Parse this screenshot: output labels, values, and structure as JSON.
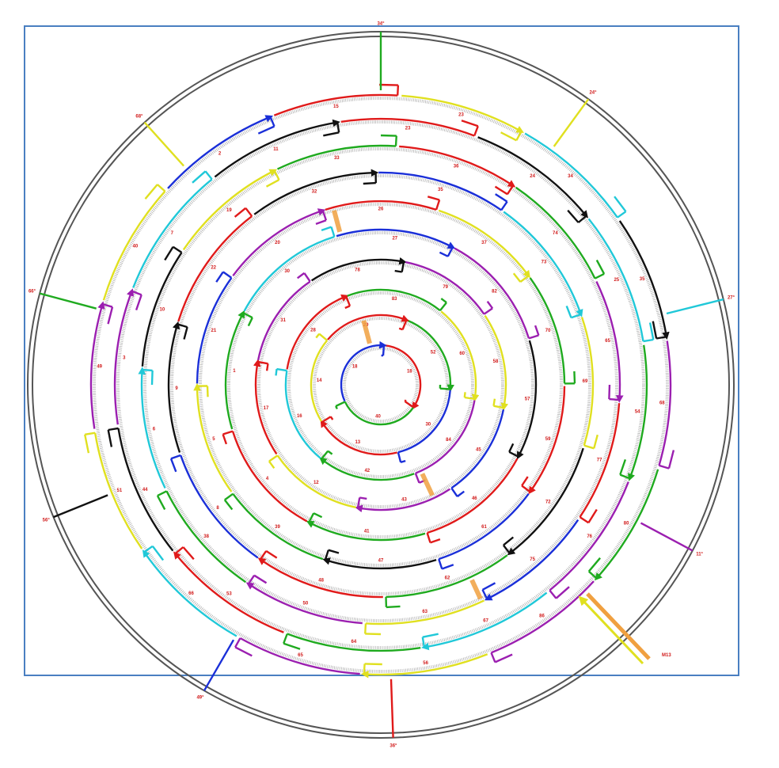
{
  "colors": {
    "frame": "#4a7fc1",
    "ring": "#555555",
    "label": "#d11a1a",
    "palette": [
      "#1faa1f",
      "#e0e020",
      "#20c8d8",
      "#9b1fb0",
      "#e01a1a",
      "#1a2fd8",
      "#111111"
    ],
    "crossover": "#f0a040"
  },
  "outer_labels": [
    "34°",
    "24°",
    "27°",
    "11°",
    "36°",
    "49°",
    "56°",
    "66°",
    "68°"
  ],
  "input_label": "M13",
  "rings": [
    {
      "count": 3,
      "segments": [
        [
          "#e01a1a",
          "18"
        ],
        [
          "#1faa1f",
          "40"
        ],
        [
          "#1a2fd8",
          "18"
        ]
      ]
    },
    {
      "count": 5,
      "segments": [
        [
          "#1faa1f",
          "52"
        ],
        [
          "#1a2fd8",
          "30"
        ],
        [
          "#e01a1a",
          "13"
        ],
        [
          "#e0e020",
          "14"
        ],
        [
          "#e01a1a",
          "29"
        ]
      ]
    },
    {
      "count": 6,
      "segments": [
        [
          "#e0e020",
          "60"
        ],
        [
          "#9b1fb0",
          "84"
        ],
        [
          "#1faa1f",
          "42"
        ],
        [
          "#20c8d8",
          "16"
        ],
        [
          "#e01a1a",
          "28"
        ],
        [
          "#1faa1f",
          "83"
        ]
      ]
    },
    {
      "count": 8,
      "segments": [
        [
          "#e0e020",
          "58"
        ],
        [
          "#1a2fd8",
          "45"
        ],
        [
          "#9b1fb0",
          "43"
        ],
        [
          "#e0e020",
          "12"
        ],
        [
          "#e01a1a",
          "17"
        ],
        [
          "#9b1fb0",
          "31"
        ],
        [
          "#111111",
          "78"
        ],
        [
          "#9b1fb0",
          "79"
        ]
      ]
    },
    {
      "count": 8,
      "segments": [
        [
          "#111111",
          "57"
        ],
        [
          "#e01a1a",
          "46"
        ],
        [
          "#1faa1f",
          "41"
        ],
        [
          "#e01a1a",
          "4"
        ],
        [
          "#1faa1f",
          "1"
        ],
        [
          "#20c8d8",
          "30"
        ],
        [
          "#1a2fd8",
          "27"
        ],
        [
          "#9b1fb0",
          "82"
        ]
      ]
    },
    {
      "count": 10,
      "segments": [
        [
          "#e01a1a",
          "59"
        ],
        [
          "#1a2fd8",
          "61"
        ],
        [
          "#111111",
          "47"
        ],
        [
          "#1faa1f",
          "39"
        ],
        [
          "#e0e020",
          "5"
        ],
        [
          "#1a2fd8",
          "21"
        ],
        [
          "#9b1fb0",
          "20"
        ],
        [
          "#e01a1a",
          "26"
        ],
        [
          "#e0e020",
          "37"
        ],
        [
          "#1faa1f",
          "70"
        ]
      ]
    },
    {
      "count": 10,
      "segments": [
        [
          "#111111",
          "72"
        ],
        [
          "#1faa1f",
          "62"
        ],
        [
          "#e01a1a",
          "48"
        ],
        [
          "#1a2fd8",
          "8"
        ],
        [
          "#111111",
          "9"
        ],
        [
          "#e01a1a",
          "22"
        ],
        [
          "#111111",
          "32"
        ],
        [
          "#1a2fd8",
          "35"
        ],
        [
          "#20c8d8",
          "73"
        ],
        [
          "#e0e020",
          "69"
        ]
      ]
    },
    {
      "count": 12,
      "segments": [
        [
          "#1a2fd8",
          "75"
        ],
        [
          "#e0e020",
          "63"
        ],
        [
          "#9b1fb0",
          "50"
        ],
        [
          "#1faa1f",
          "38"
        ],
        [
          "#20c8d8",
          "6"
        ],
        [
          "#111111",
          "10"
        ],
        [
          "#e0e020",
          "19"
        ],
        [
          "#1faa1f",
          "33"
        ],
        [
          "#e01a1a",
          "36"
        ],
        [
          "#1faa1f",
          "74"
        ],
        [
          "#9b1fb0",
          "65"
        ],
        [
          "#e01a1a",
          "77"
        ]
      ]
    },
    {
      "count": 12,
      "segments": [
        [
          "#20c8d8",
          "67"
        ],
        [
          "#1faa1f",
          "64"
        ],
        [
          "#e01a1a",
          "53"
        ],
        [
          "#111111",
          "44"
        ],
        [
          "#9b1fb0",
          "3"
        ],
        [
          "#20c8d8",
          "7"
        ],
        [
          "#111111",
          "11"
        ],
        [
          "#e01a1a",
          "23"
        ],
        [
          "#111111",
          "24"
        ],
        [
          "#20c8d8",
          "25"
        ],
        [
          "#1faa1f",
          "54"
        ],
        [
          "#9b1fb0",
          "76"
        ]
      ]
    },
    {
      "count": 14,
      "segments": [
        [
          "#e0e020",
          "56"
        ],
        [
          "#9b1fb0",
          "65"
        ],
        [
          "#20c8d8",
          "66"
        ],
        [
          "#e0e020",
          "51"
        ],
        [
          "#9b1fb0",
          "49"
        ],
        [
          "#e0e020",
          "40"
        ],
        [
          "#1a2fd8",
          "2"
        ],
        [
          "#e01a1a",
          "15"
        ],
        [
          "#e0e020",
          "23"
        ],
        [
          "#20c8d8",
          "34"
        ],
        [
          "#111111",
          "35"
        ],
        [
          "#9b1fb0",
          "68"
        ],
        [
          "#1faa1f",
          "80"
        ],
        [
          "#9b1fb0",
          "86"
        ]
      ]
    }
  ]
}
